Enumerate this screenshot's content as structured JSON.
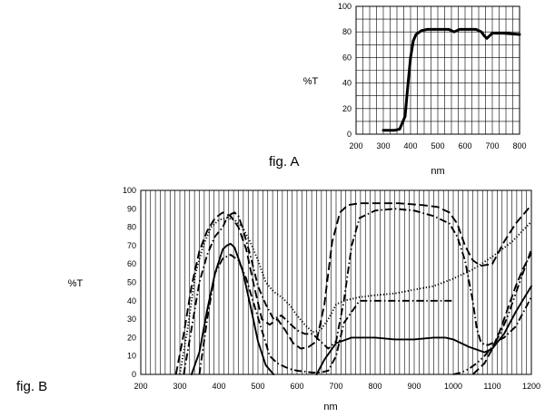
{
  "chart_data": [
    {
      "type": "line",
      "label": "fig. A",
      "xlabel": "nm",
      "ylabel": "%T",
      "xlim": [
        200,
        800
      ],
      "ylim": [
        0,
        100
      ],
      "xticks": [
        200,
        300,
        400,
        500,
        600,
        700,
        800
      ],
      "yticks": [
        0,
        20,
        40,
        60,
        80,
        100
      ],
      "grid": true,
      "series": [
        {
          "style": "solid-thick",
          "x": [
            300,
            340,
            360,
            380,
            390,
            400,
            410,
            420,
            440,
            460,
            500,
            540,
            560,
            580,
            600,
            640,
            660,
            670,
            680,
            690,
            700,
            740,
            800
          ],
          "y": [
            3,
            3,
            4,
            14,
            38,
            60,
            73,
            78,
            81,
            82,
            82,
            82,
            80,
            82,
            82,
            82,
            80,
            77,
            75,
            77,
            79,
            79,
            78
          ]
        }
      ]
    },
    {
      "type": "line",
      "label": "fig. B",
      "xlabel": "nm",
      "ylabel": "%T",
      "xlim": [
        200,
        1200
      ],
      "ylim": [
        0,
        100
      ],
      "xticks": [
        200,
        300,
        400,
        500,
        600,
        700,
        800,
        900,
        1000,
        1100,
        1200
      ],
      "yticks": [
        0,
        10,
        20,
        30,
        40,
        50,
        60,
        70,
        80,
        90,
        100
      ],
      "grid": "vertical",
      "series": [
        {
          "style": "solid",
          "x": [
            330,
            350,
            370,
            390,
            410,
            420,
            430,
            440,
            460,
            480,
            500,
            520,
            540
          ],
          "y": [
            0,
            12,
            35,
            55,
            68,
            70,
            71,
            69,
            57,
            38,
            18,
            5,
            0
          ]
        },
        {
          "style": "solid",
          "x": [
            650,
            670,
            700,
            740,
            800,
            850,
            900,
            950,
            980,
            1000,
            1040,
            1080,
            1100,
            1130,
            1160,
            1200
          ],
          "y": [
            0,
            8,
            17,
            20,
            20,
            19,
            19,
            20,
            20,
            19,
            15,
            12,
            14,
            22,
            34,
            48
          ]
        },
        {
          "style": "dashed",
          "x": [
            290,
            310,
            330,
            350,
            370,
            390,
            410,
            430,
            450,
            470,
            490,
            510,
            530,
            550,
            570,
            590,
            610,
            630,
            650,
            670,
            690,
            710,
            730,
            760,
            800,
            860,
            920,
            960,
            990,
            1010,
            1030,
            1050,
            1070,
            1100,
            1130,
            1160,
            1200
          ],
          "y": [
            0,
            22,
            48,
            67,
            78,
            85,
            88,
            86,
            80,
            68,
            48,
            30,
            27,
            30,
            24,
            17,
            14,
            15,
            18,
            38,
            72,
            88,
            92,
            93,
            93,
            93,
            92,
            91,
            88,
            82,
            70,
            62,
            59,
            60,
            72,
            82,
            92
          ]
        },
        {
          "style": "dash-dot",
          "x": [
            310,
            330,
            350,
            370,
            390,
            410,
            420,
            430,
            440,
            450,
            460,
            480,
            500,
            520,
            540,
            560,
            580,
            600,
            620,
            640,
            660,
            680,
            700,
            720,
            740,
            760,
            800,
            850,
            900,
            950,
            990,
            1010,
            1030,
            1050,
            1060,
            1070,
            1080,
            1090,
            1100,
            1130,
            1160,
            1200
          ],
          "y": [
            0,
            25,
            50,
            65,
            75,
            80,
            85,
            87,
            88,
            86,
            80,
            65,
            48,
            38,
            30,
            32,
            28,
            24,
            22,
            22,
            18,
            14,
            18,
            40,
            70,
            85,
            89,
            90,
            89,
            86,
            82,
            75,
            62,
            40,
            25,
            18,
            16,
            16,
            17,
            20,
            26,
            42
          ]
        },
        {
          "style": "dash-dot",
          "x": [
            350,
            370,
            390,
            410,
            430,
            450,
            470,
            490,
            510,
            530,
            550,
            560,
            580,
            600,
            640,
            660,
            680,
            700,
            720,
            760,
            800,
            850,
            900,
            950,
            1000
          ],
          "y": [
            0,
            30,
            55,
            63,
            65,
            62,
            52,
            38,
            24,
            10,
            6,
            5,
            3,
            2,
            1,
            1,
            2,
            10,
            28,
            40,
            40,
            40,
            40,
            40,
            40
          ]
        },
        {
          "style": "dotted",
          "x": [
            300,
            320,
            340,
            360,
            380,
            400,
            420,
            440,
            460,
            480,
            500,
            520,
            540,
            560,
            580,
            600,
            620,
            640,
            660,
            680,
            700,
            720,
            740,
            760,
            800,
            850,
            900,
            950,
            1000,
            1050,
            1100,
            1150,
            1200
          ],
          "y": [
            0,
            25,
            55,
            70,
            80,
            84,
            85,
            84,
            80,
            72,
            62,
            50,
            45,
            42,
            38,
            32,
            27,
            23,
            24,
            30,
            38,
            40,
            41,
            42,
            43,
            44,
            46,
            48,
            52,
            57,
            64,
            72,
            83
          ]
        },
        {
          "style": "dash-dot-dot",
          "x": [
            1000,
            1020,
            1040,
            1060,
            1080,
            1100,
            1120,
            1140,
            1160,
            1180,
            1200
          ],
          "y": [
            0,
            1,
            3,
            6,
            10,
            15,
            22,
            32,
            44,
            56,
            68
          ]
        },
        {
          "style": "dashed",
          "x": [
            1050,
            1080,
            1100,
            1120,
            1140,
            1160,
            1180,
            1200
          ],
          "y": [
            0,
            6,
            14,
            24,
            36,
            48,
            58,
            66
          ]
        }
      ]
    }
  ]
}
